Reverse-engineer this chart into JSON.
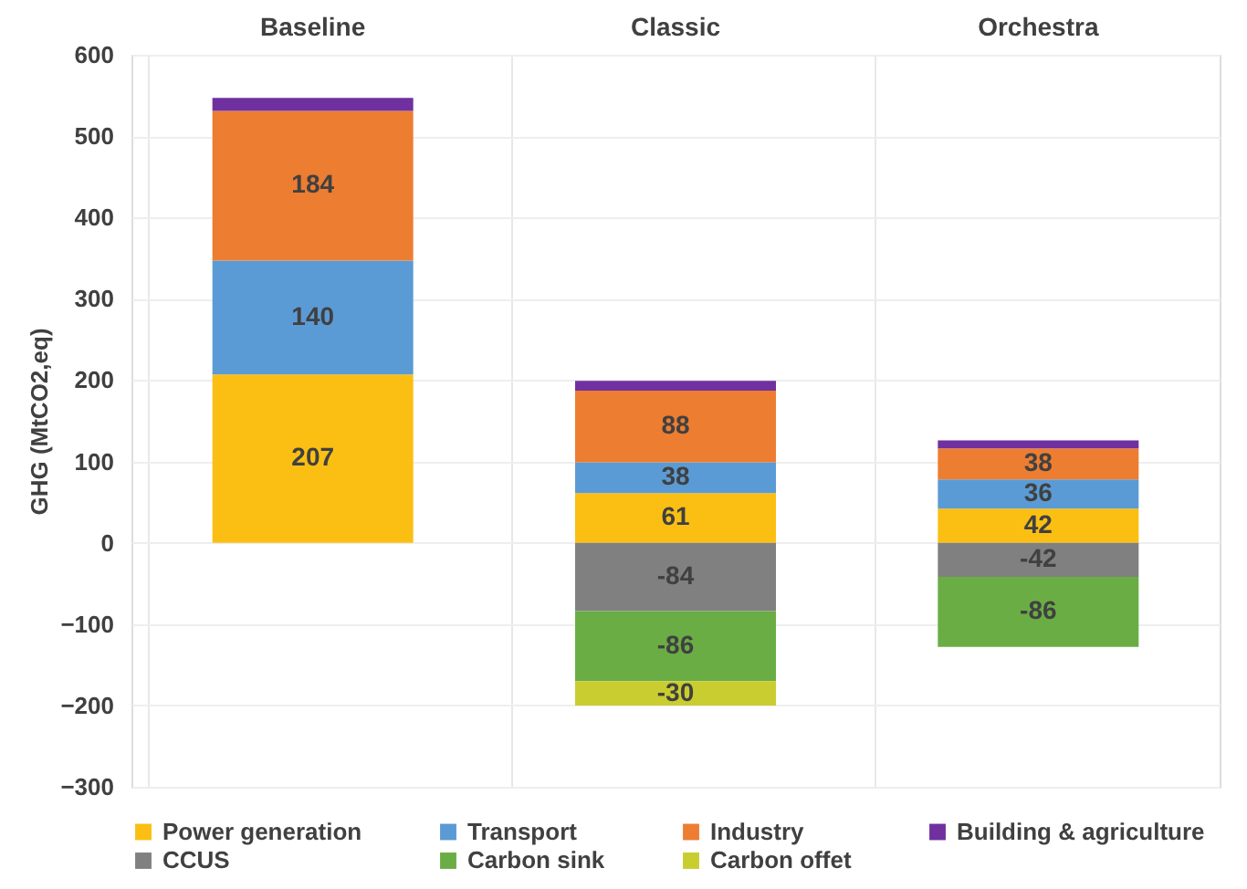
{
  "chart_data": {
    "type": "bar",
    "stacked": true,
    "ylabel": "GHG (MtCO2,eq)",
    "categories": [
      "Baseline",
      "Classic",
      "Orchestra"
    ],
    "series": [
      {
        "name": "Power generation",
        "color": "#fbbf13",
        "values": [
          207,
          61,
          42
        ],
        "value_labels": [
          "207",
          "61",
          "42"
        ]
      },
      {
        "name": "Transport",
        "color": "#5b9bd5",
        "values": [
          140,
          38,
          36
        ],
        "value_labels": [
          "140",
          "38",
          "36"
        ]
      },
      {
        "name": "Industry",
        "color": "#ed7d31",
        "values": [
          184,
          88,
          38
        ],
        "value_labels": [
          "184",
          "88",
          "38"
        ]
      },
      {
        "name": "Building & agriculture",
        "color": "#7030a0",
        "values": [
          16,
          12,
          10
        ],
        "value_labels": [
          null,
          null,
          null
        ]
      },
      {
        "name": "CCUS",
        "color": "#808080",
        "values": [
          null,
          -84,
          -42
        ],
        "value_labels": [
          null,
          "-84",
          "-42"
        ]
      },
      {
        "name": "Carbon sink",
        "color": "#6aad45",
        "values": [
          null,
          -86,
          -86
        ],
        "value_labels": [
          null,
          "-86",
          "-86"
        ]
      },
      {
        "name": "Carbon offet",
        "color": "#c9cd2f",
        "values": [
          null,
          -30,
          null
        ],
        "value_labels": [
          null,
          "-30",
          null
        ]
      }
    ],
    "ylim": [
      -300,
      600
    ],
    "yticks": [
      -300,
      -200,
      -100,
      0,
      100,
      200,
      300,
      400,
      500,
      600
    ],
    "grid": true,
    "legend": "bottom"
  }
}
